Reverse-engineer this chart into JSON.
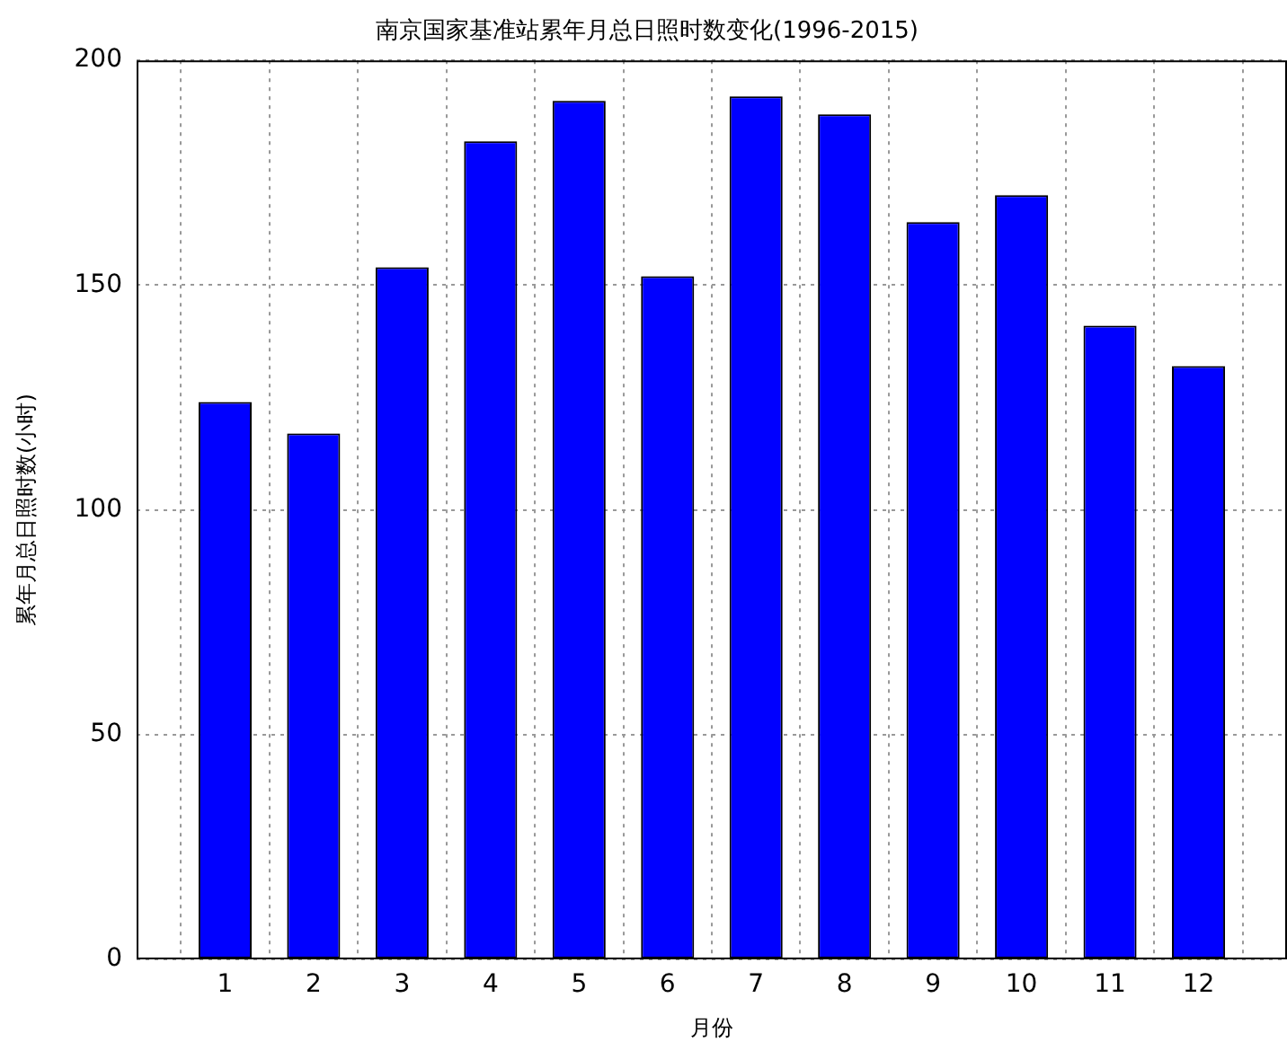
{
  "chart_data": {
    "type": "bar",
    "title": "南京国家基准站累年月总日照时数变化(1996-2015)",
    "xlabel": "月份",
    "ylabel": "累年月总日照时数(小时)",
    "x": [
      1,
      2,
      3,
      4,
      5,
      6,
      7,
      8,
      9,
      10,
      11,
      12
    ],
    "values": [
      124,
      117,
      154,
      182,
      191,
      152,
      192,
      188,
      164,
      170,
      141,
      132
    ],
    "color": "#0000ff",
    "xlim": [
      0,
      13
    ],
    "xticks": [
      1,
      2,
      3,
      4,
      5,
      6,
      7,
      8,
      9,
      10,
      11,
      12
    ],
    "ylim": [
      0,
      200
    ],
    "yticks": [
      0,
      50,
      100,
      150,
      200
    ],
    "grid": true
  }
}
